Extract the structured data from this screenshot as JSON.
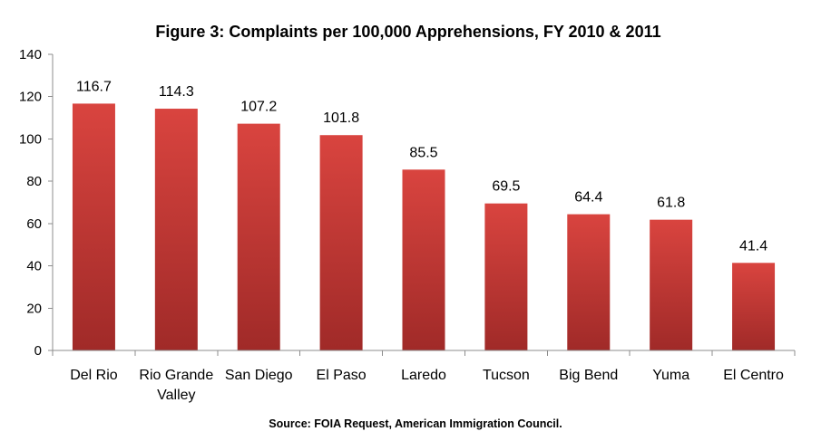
{
  "chart_data": {
    "type": "bar",
    "title": "Figure 3: Complaints per 100,000 Apprehensions, FY 2010 & 2011",
    "source": "Source: FOIA Request, American Immigration Council.",
    "categories": [
      "Del Rio",
      "Rio Grande Valley",
      "San Diego",
      "El Paso",
      "Laredo",
      "Tucson",
      "Big Bend",
      "Yuma",
      "El Centro"
    ],
    "category_lines": [
      [
        "Del Rio"
      ],
      [
        "Rio Grande",
        "Valley"
      ],
      [
        "San Diego"
      ],
      [
        "El Paso"
      ],
      [
        "Laredo"
      ],
      [
        "Tucson"
      ],
      [
        "Big Bend"
      ],
      [
        "Yuma"
      ],
      [
        "El Centro"
      ]
    ],
    "values": [
      116.7,
      114.3,
      107.2,
      101.8,
      85.5,
      69.5,
      64.4,
      61.8,
      41.4
    ],
    "data_labels": [
      "116.7",
      "114.3",
      "107.2",
      "101.8",
      "85.5",
      "69.5",
      "64.4",
      "61.8",
      "41.4"
    ],
    "ylim": [
      0,
      140
    ],
    "yticks": [
      0,
      20,
      40,
      60,
      80,
      100,
      120,
      140
    ],
    "xlabel": "",
    "ylabel": "",
    "grid": false,
    "legend": "none",
    "colors": {
      "bar_top": "#d9443f",
      "bar_bottom": "#a02a28",
      "axis": "#8c8c8c"
    }
  }
}
